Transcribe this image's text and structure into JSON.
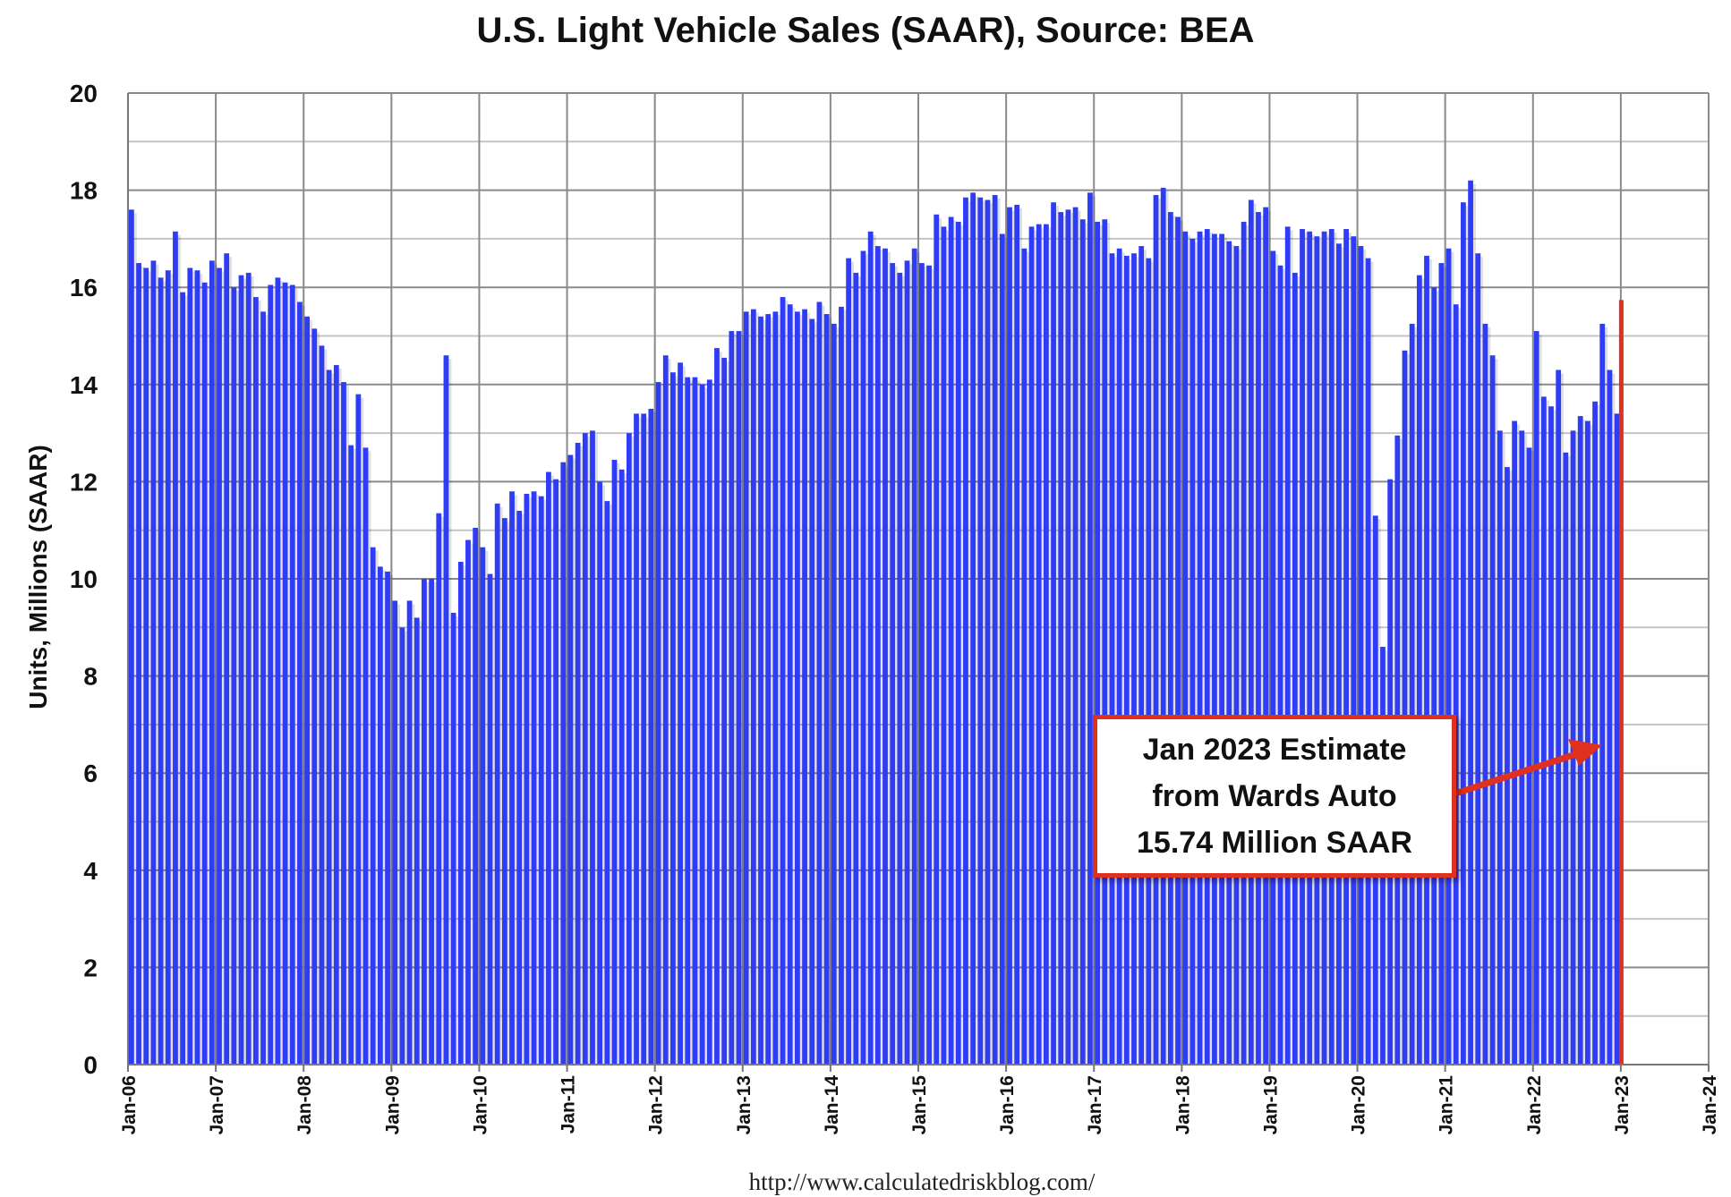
{
  "chart_data": {
    "type": "bar",
    "title": "U.S. Light Vehicle Sales (SAAR), Source: BEA",
    "ylabel": "Units, Millions (SAAR)",
    "xlabel": "",
    "ylim": [
      0,
      20
    ],
    "yticks": [
      0,
      2,
      4,
      6,
      8,
      10,
      12,
      14,
      16,
      18,
      20
    ],
    "xtick_labels": [
      "Jan-06",
      "Jan-07",
      "Jan-08",
      "Jan-09",
      "Jan-10",
      "Jan-11",
      "Jan-12",
      "Jan-13",
      "Jan-14",
      "Jan-15",
      "Jan-16",
      "Jan-17",
      "Jan-18",
      "Jan-19",
      "Jan-20",
      "Jan-21",
      "Jan-22",
      "Jan-23",
      "Jan-24"
    ],
    "grid": true,
    "x_start": "Jan-2006",
    "frequency": "monthly",
    "series": [
      {
        "color": "#2f3cf5",
        "values": [
          17.6,
          16.5,
          16.4,
          16.55,
          16.2,
          16.35,
          17.15,
          15.9,
          16.4,
          16.35,
          16.1,
          16.55,
          16.4,
          16.7,
          16.0,
          16.25,
          16.3,
          15.8,
          15.5,
          16.05,
          16.2,
          16.1,
          16.05,
          15.7,
          15.4,
          15.15,
          14.8,
          14.3,
          14.4,
          14.05,
          12.75,
          13.8,
          12.7,
          10.65,
          10.25,
          10.15,
          9.55,
          9.0,
          9.55,
          9.2,
          10.0,
          10.0,
          11.35,
          14.6,
          9.3,
          10.35,
          10.8,
          11.05,
          10.65,
          10.1,
          11.55,
          11.25,
          11.8,
          11.4,
          11.75,
          11.8,
          11.7,
          12.2,
          12.05,
          12.4,
          12.55,
          12.8,
          13.0,
          13.05,
          12.0,
          11.6,
          12.45,
          12.25,
          13.0,
          13.4,
          13.4,
          13.5,
          14.05,
          14.6,
          14.25,
          14.45,
          14.15,
          14.15,
          14.0,
          14.1,
          14.75,
          14.55,
          15.1,
          15.1,
          15.5,
          15.55,
          15.4,
          15.45,
          15.5,
          15.8,
          15.65,
          15.5,
          15.55,
          15.35,
          15.7,
          15.45,
          15.25,
          15.6,
          16.6,
          16.3,
          16.75,
          17.15,
          16.85,
          16.8,
          16.5,
          16.3,
          16.55,
          16.8,
          16.5,
          16.45,
          17.5,
          17.25,
          17.45,
          17.35,
          17.85,
          17.95,
          17.85,
          17.8,
          17.9,
          17.1,
          17.65,
          17.7,
          16.8,
          17.25,
          17.3,
          17.3,
          17.75,
          17.55,
          17.6,
          17.65,
          17.4,
          17.95,
          17.35,
          17.4,
          16.7,
          16.8,
          16.65,
          16.7,
          16.85,
          16.6,
          17.9,
          18.05,
          17.55,
          17.45,
          17.15,
          17.0,
          17.15,
          17.2,
          17.1,
          17.1,
          16.95,
          16.85,
          17.35,
          17.8,
          17.55,
          17.65,
          16.75,
          16.45,
          17.25,
          16.3,
          17.2,
          17.15,
          17.05,
          17.15,
          17.2,
          16.9,
          17.2,
          17.05,
          16.85,
          16.6,
          11.3,
          8.6,
          12.05,
          12.95,
          14.7,
          15.25,
          16.25,
          16.65,
          16.0,
          16.5,
          16.8,
          15.65,
          17.75,
          18.2,
          16.7,
          15.25,
          14.6,
          13.05,
          12.3,
          13.25,
          13.05,
          12.7,
          15.1,
          13.75,
          13.55,
          14.3,
          12.6,
          13.05,
          13.35,
          13.25,
          13.65,
          15.25,
          14.3,
          13.4,
          15.74
        ],
        "highlight_last": {
          "color": "#e0301e",
          "label": "Jan 2023"
        }
      }
    ],
    "annotation": {
      "lines": [
        "Jan 2023 Estimate",
        "from Wards Auto",
        "15.74 Million SAAR"
      ],
      "border_color": "#e0301e"
    }
  },
  "footer": {
    "url_text": "http://www.calculatedriskblog.com/"
  }
}
